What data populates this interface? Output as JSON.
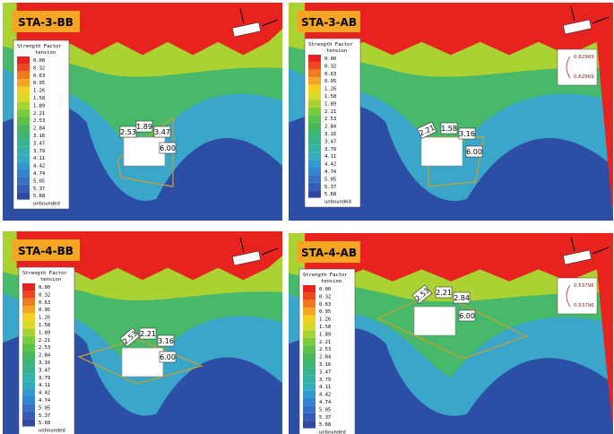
{
  "panels": [
    {
      "title": "STA-3-BB",
      "legend_title": "Strength Factor",
      "legend_subtitle": "tension",
      "legend_labels": [
        "0.00",
        "0.32",
        "0.63",
        "0.95",
        "1.26",
        "1.58",
        "1.89",
        "2.21",
        "2.53",
        "2.84",
        "3.16",
        "3.47",
        "3.79",
        "4.11",
        "4.42",
        "4.74",
        "5.05",
        "5.37",
        "5.68",
        "unbounded"
      ],
      "point_labels": [
        "2.53",
        "1.89",
        "3.47",
        "6.00"
      ],
      "force_labels": []
    },
    {
      "title": "STA-3-AB",
      "legend_title": "Strength Factor",
      "legend_subtitle": "tension",
      "legend_labels": [
        "0.00",
        "0.32",
        "0.63",
        "0.95",
        "1.26",
        "1.58",
        "1.89",
        "2.21",
        "2.53",
        "2.84",
        "3.16",
        "3.47",
        "3.79",
        "4.11",
        "4.42",
        "4.74",
        "5.05",
        "5.37",
        "5.68",
        "unbounded"
      ],
      "point_labels": [
        "2.21",
        "1.58",
        "3.16",
        "6.00"
      ],
      "force_labels": [
        "0.62969",
        "0.62969"
      ]
    },
    {
      "title": "STA-4-BB",
      "legend_title": "Strength Factor",
      "legend_subtitle": "tension",
      "legend_labels": [
        "0.00",
        "0.32",
        "0.63",
        "0.95",
        "1.26",
        "1.58",
        "1.89",
        "2.21",
        "2.53",
        "2.84",
        "3.16",
        "3.47",
        "3.79",
        "4.11",
        "4.42",
        "4.74",
        "5.05",
        "5.37",
        "5.68",
        "unbounded"
      ],
      "point_labels": [
        "2.53",
        "2.21",
        "3.16",
        "6.00"
      ],
      "force_labels": []
    },
    {
      "title": "STA-4-AB",
      "legend_title": "Strength Factor",
      "legend_subtitle": "tension",
      "legend_labels": [
        "0.00",
        "0.32",
        "0.63",
        "0.95",
        "1.26",
        "1.58",
        "1.89",
        "2.21",
        "2.53",
        "2.84",
        "3.16",
        "3.47",
        "3.79",
        "4.11",
        "4.42",
        "4.74",
        "5.05",
        "5.37",
        "5.68",
        "unbounded"
      ],
      "point_labels": [
        "2.53",
        "2.21",
        "2.84",
        "6.00"
      ],
      "force_labels": [
        "0.53796",
        "0.53796"
      ]
    }
  ]
}
